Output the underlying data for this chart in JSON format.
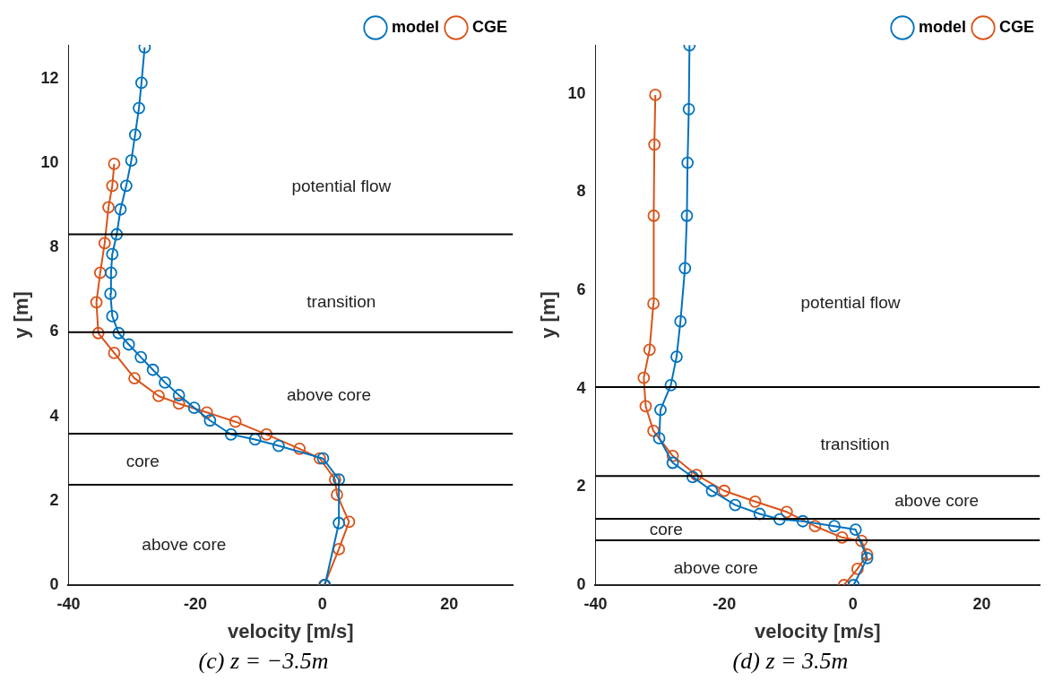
{
  "chart_data": [
    {
      "type": "line",
      "xlabel": "velocity [m/s]",
      "ylabel": "y [m]",
      "xlim": [
        -40,
        30
      ],
      "xticks": [
        -40,
        -20,
        0,
        20
      ],
      "ylim": [
        0,
        12.8
      ],
      "yticks": [
        0,
        2,
        4,
        6,
        8,
        10,
        12
      ],
      "grid": false,
      "legend": "top right",
      "marker": "circle",
      "line_style": "solid",
      "series": [
        {
          "name": "model",
          "color": "#0072bd",
          "x": [
            0.4,
            2.6,
            2.6,
            0.1,
            -6.9,
            -10.6,
            -14.4,
            -17.7,
            -20.2,
            -22.6,
            -24.8,
            -26.7,
            -28.6,
            -30.5,
            -32.1,
            -33.1,
            -33.4,
            -33.3,
            -33.1,
            -32.4,
            -31.8,
            -30.9,
            -30.1,
            -29.5,
            -28.9,
            -28.5,
            -28.0
          ],
          "values": [
            0,
            1.47,
            2.5,
            3.0,
            3.3,
            3.45,
            3.57,
            3.9,
            4.2,
            4.5,
            4.8,
            5.1,
            5.4,
            5.7,
            5.97,
            6.37,
            6.9,
            7.4,
            7.84,
            8.31,
            8.9,
            9.46,
            10.06,
            10.67,
            11.3,
            11.9,
            12.74
          ]
        },
        {
          "name": "CGE",
          "color": "#d95319",
          "x": [
            0.3,
            2.6,
            4.2,
            2.3,
            2.0,
            -0.4,
            -3.6,
            -8.8,
            -13.7,
            -18.2,
            -22.6,
            -25.8,
            -29.6,
            -32.8,
            -35.3,
            -35.6,
            -35.0,
            -34.3,
            -33.7,
            -33.1,
            -32.8
          ],
          "values": [
            0,
            0.85,
            1.5,
            2.14,
            2.5,
            3.0,
            3.23,
            3.57,
            3.87,
            4.09,
            4.3,
            4.48,
            4.9,
            5.5,
            5.97,
            6.7,
            7.4,
            8.1,
            8.95,
            9.46,
            9.98
          ]
        }
      ],
      "ref_lines": [
        {
          "axis": "y",
          "value": 8.31
        },
        {
          "axis": "y",
          "value": 5.99
        },
        {
          "axis": "y",
          "value": 3.59
        },
        {
          "axis": "y",
          "value": 2.38
        }
      ],
      "annotations": [
        "potential flow",
        "transition",
        "above core",
        "core",
        "above core",
        "(c) z = −3.5m"
      ]
    },
    {
      "type": "line",
      "xlabel": "velocity [m/s]",
      "ylabel": "y [m]",
      "xlim": [
        -40,
        29
      ],
      "xticks": [
        -40,
        -20,
        0,
        20
      ],
      "ylim": [
        0,
        11
      ],
      "yticks": [
        0,
        2,
        4,
        6,
        8,
        10
      ],
      "grid": false,
      "legend": "top right",
      "marker": "circle",
      "line_style": "solid",
      "series": [
        {
          "name": "model",
          "color": "#0072bd",
          "x": [
            0.1,
            2.2,
            0.4,
            -2.9,
            -7.8,
            -11.4,
            -14.5,
            -18.3,
            -21.9,
            -24.9,
            -28.0,
            -30.1,
            -29.9,
            -28.3,
            -27.4,
            -26.8,
            -26.1,
            -25.8,
            -25.7,
            -25.5,
            -25.4
          ],
          "values": [
            0,
            0.55,
            1.13,
            1.2,
            1.3,
            1.34,
            1.45,
            1.63,
            1.92,
            2.2,
            2.49,
            2.99,
            3.57,
            4.07,
            4.65,
            5.37,
            6.45,
            7.52,
            8.6,
            9.69,
            10.99
          ]
        },
        {
          "name": "CGE",
          "color": "#d95319",
          "x": [
            -1.4,
            0.7,
            2.2,
            1.3,
            -1.7,
            -5.9,
            -10.3,
            -15.2,
            -20.0,
            -24.3,
            -28.0,
            -31.0,
            -32.2,
            -32.5,
            -31.6,
            -31.0,
            -30.95,
            -30.85,
            -30.7
          ],
          "values": [
            0,
            0.33,
            0.62,
            0.9,
            0.97,
            1.2,
            1.49,
            1.7,
            1.92,
            2.24,
            2.63,
            3.14,
            3.64,
            4.22,
            4.79,
            5.73,
            7.52,
            8.97,
            9.98
          ]
        }
      ],
      "ref_lines": [
        {
          "axis": "y",
          "value": 4.03
        },
        {
          "axis": "y",
          "value": 2.22
        },
        {
          "axis": "y",
          "value": 1.35
        },
        {
          "axis": "y",
          "value": 0.91
        }
      ],
      "annotations": [
        "potential flow",
        "transition",
        "above core",
        "core",
        "above core",
        "(d) z = 3.5m"
      ]
    }
  ]
}
